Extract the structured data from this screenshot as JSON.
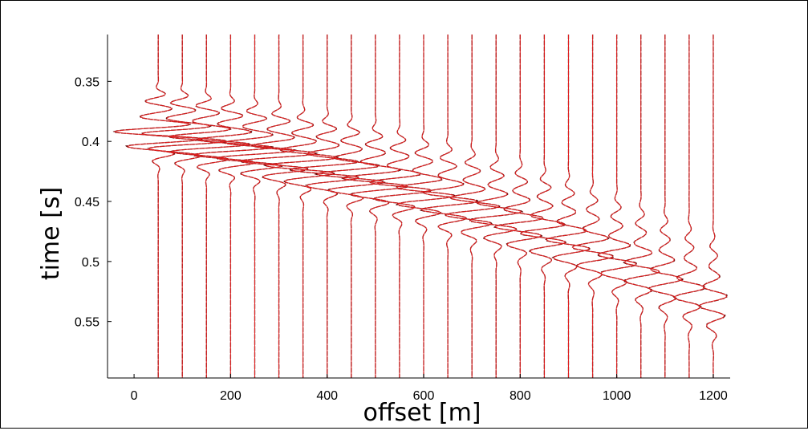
{
  "chart_data": {
    "type": "line",
    "title": "",
    "xlabel": "offset [m]",
    "ylabel": "time [s]",
    "xlim": [
      -55,
      1235
    ],
    "ylim": [
      0.597,
      0.311
    ],
    "y_inverted": true,
    "x_ticks": [
      0,
      200,
      400,
      600,
      800,
      1000,
      1200
    ],
    "x_tick_labels": [
      "0",
      "200",
      "400",
      "600",
      "800",
      "1000",
      "1200"
    ],
    "y_ticks": [
      0.35,
      0.4,
      0.45,
      0.5,
      0.55
    ],
    "y_tick_labels": [
      "0.35",
      "0.4",
      "0.45",
      "0.5",
      "0.55"
    ],
    "grid": false,
    "legend": "none",
    "trace_offsets": [
      50,
      100,
      150,
      200,
      250,
      300,
      350,
      400,
      450,
      500,
      550,
      600,
      650,
      700,
      750,
      800,
      850,
      900,
      950,
      1000,
      1050,
      1100,
      1150,
      1200
    ],
    "wavelet_arrival_times": [
      0.395,
      0.398,
      0.402,
      0.406,
      0.41,
      0.414,
      0.419,
      0.424,
      0.429,
      0.434,
      0.439,
      0.445,
      0.451,
      0.457,
      0.463,
      0.47,
      0.477,
      0.484,
      0.492,
      0.5,
      0.508,
      0.516,
      0.525,
      0.534
    ],
    "series": [
      {
        "name": "",
        "color": "#e02020"
      },
      {
        "name": "",
        "color": "#5a0000"
      }
    ]
  }
}
